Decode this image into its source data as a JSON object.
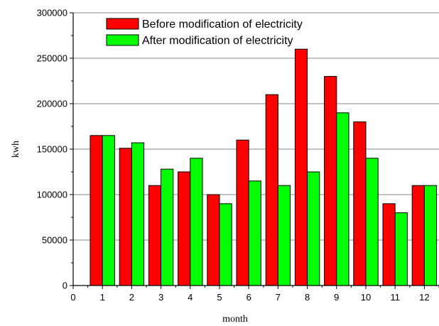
{
  "chart_data": {
    "type": "bar",
    "title": "",
    "xlabel": "month",
    "ylabel": "kwh",
    "xlim": [
      0,
      12.5
    ],
    "ylim": [
      0,
      300000
    ],
    "x_ticks": [
      "0",
      "1",
      "2",
      "3",
      "4",
      "5",
      "6",
      "7",
      "8",
      "9",
      "10",
      "11",
      "12"
    ],
    "y_ticks": [
      "0",
      "50000",
      "100000",
      "150000",
      "200000",
      "250000",
      "300000"
    ],
    "categories": [
      "1",
      "2",
      "3",
      "4",
      "5",
      "6",
      "7",
      "8",
      "9",
      "10",
      "11",
      "12"
    ],
    "series": [
      {
        "name": "Before modification of electricity",
        "color": "#ff0000",
        "values": [
          165000,
          151000,
          110000,
          125000,
          100000,
          160000,
          210000,
          260000,
          230000,
          180000,
          90000,
          110000
        ]
      },
      {
        "name": "After modification of electricity",
        "color": "#00ff00",
        "values": [
          165000,
          157000,
          128000,
          140000,
          90000,
          115000,
          110000,
          125000,
          190000,
          140000,
          80000,
          110000
        ]
      }
    ],
    "grid": "horizontal",
    "legend_position": "top-center"
  }
}
